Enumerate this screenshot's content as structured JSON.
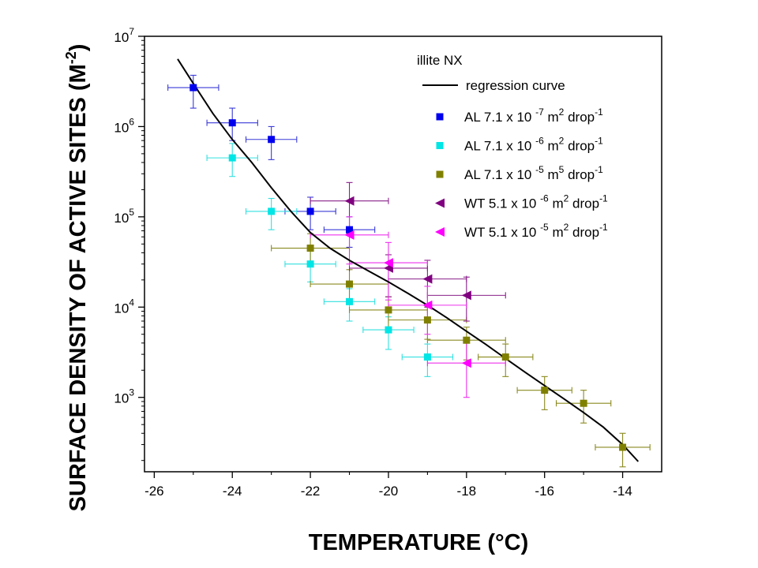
{
  "chart_data": {
    "type": "scatter",
    "xlabel": "TEMPERATURE (°C)",
    "ylabel_main": "SURFACE DENSITY OF ACTIVE SITES (M",
    "ylabel_sup": "-2",
    "ylabel_end": ")",
    "x_range": [
      -26.25,
      -13.0
    ],
    "y_range": [
      150,
      10000000
    ],
    "y_scale": "log",
    "x_ticks": [
      -26,
      -24,
      -22,
      -20,
      -18,
      -16,
      -14
    ],
    "x_tick_labels": [
      "-26",
      "-24",
      "-22",
      "-20",
      "-18",
      "-16",
      "-14"
    ],
    "y_ticks": [
      {
        "value": 1000,
        "mant": "10",
        "exp": "3"
      },
      {
        "value": 10000,
        "mant": "10",
        "exp": "4"
      },
      {
        "value": 100000,
        "mant": "10",
        "exp": "5"
      },
      {
        "value": 1000000,
        "mant": "10",
        "exp": "6"
      },
      {
        "value": 10000000,
        "mant": "10",
        "exp": "7"
      }
    ],
    "legend_title": "illite NX",
    "regression": {
      "label": "regression curve",
      "color": "#000000",
      "points": [
        [
          -25.4,
          5600000
        ],
        [
          -25.0,
          3000000
        ],
        [
          -24.5,
          1400000
        ],
        [
          -24.0,
          720000
        ],
        [
          -23.5,
          400000
        ],
        [
          -23.0,
          210000
        ],
        [
          -22.5,
          115000
        ],
        [
          -22.0,
          67000
        ],
        [
          -21.5,
          45000
        ],
        [
          -21.0,
          33000
        ],
        [
          -20.5,
          25000
        ],
        [
          -20.0,
          19000
        ],
        [
          -19.5,
          14200
        ],
        [
          -19.0,
          10500
        ],
        [
          -18.5,
          7600
        ],
        [
          -18.0,
          5400
        ],
        [
          -17.5,
          3850
        ],
        [
          -17.0,
          2700
        ],
        [
          -16.5,
          1900
        ],
        [
          -16.0,
          1350
        ],
        [
          -15.5,
          960
        ],
        [
          -15.0,
          680
        ],
        [
          -14.5,
          470
        ],
        [
          -14.0,
          300
        ],
        [
          -13.6,
          195
        ]
      ]
    },
    "series": [
      {
        "name": "AL 7.1 x 10",
        "exp": "-7",
        "unit": "m",
        "unit_exp": "2",
        "tail": "drop",
        "tail_exp": "-1",
        "marker": "square",
        "color": "#0000ee",
        "err_color": "#3a3ad8",
        "points": [
          {
            "x": -25.0,
            "y": 2700000,
            "xerr": 0.65,
            "ylo": 1600000,
            "yhi": 3700000
          },
          {
            "x": -24.0,
            "y": 1100000,
            "xerr": 0.65,
            "ylo": 700000,
            "yhi": 1600000
          },
          {
            "x": -23.0,
            "y": 720000,
            "xerr": 0.65,
            "ylo": 430000,
            "yhi": 1000000
          },
          {
            "x": -22.0,
            "y": 115000,
            "xerr": 0.65,
            "ylo": 72000,
            "yhi": 165000
          },
          {
            "x": -21.0,
            "y": 72000,
            "xerr": 0.65,
            "ylo": 46000,
            "yhi": 100000
          }
        ]
      },
      {
        "name": "AL 7.1 x 10",
        "exp": "-6",
        "unit": "m",
        "unit_exp": "2",
        "tail": "drop",
        "tail_exp": "-1",
        "marker": "square",
        "color": "#00e5e5",
        "err_color": "#33e0e0",
        "points": [
          {
            "x": -24.0,
            "y": 450000,
            "xerr": 0.65,
            "ylo": 280000,
            "yhi": 650000
          },
          {
            "x": -23.0,
            "y": 115000,
            "xerr": 0.65,
            "ylo": 72000,
            "yhi": 160000
          },
          {
            "x": -22.0,
            "y": 30000,
            "xerr": 0.65,
            "ylo": 19000,
            "yhi": 43000
          },
          {
            "x": -21.0,
            "y": 11500,
            "xerr": 0.65,
            "ylo": 7000,
            "yhi": 16000
          },
          {
            "x": -20.0,
            "y": 5600,
            "xerr": 0.65,
            "ylo": 3400,
            "yhi": 7800
          },
          {
            "x": -19.0,
            "y": 2800,
            "xerr": 0.65,
            "ylo": 1700,
            "yhi": 3900
          }
        ]
      },
      {
        "name": "AL 7.1 x 10",
        "exp": "-5",
        "unit": "m",
        "unit_exp": "5",
        "tail": "drop",
        "tail_exp": "-1",
        "marker": "square",
        "color": "#808000",
        "err_color": "#8a8a20",
        "points": [
          {
            "x": -22.0,
            "y": 45000,
            "xerr": 1.0,
            "ylo": 28000,
            "yhi": 65000
          },
          {
            "x": -21.0,
            "y": 18000,
            "xerr": 1.0,
            "ylo": 11000,
            "yhi": 26000
          },
          {
            "x": -20.0,
            "y": 9300,
            "xerr": 1.0,
            "ylo": 5700,
            "yhi": 13000
          },
          {
            "x": -19.0,
            "y": 7200,
            "xerr": 1.0,
            "ylo": 4400,
            "yhi": 10000
          },
          {
            "x": -18.0,
            "y": 4300,
            "xerr": 1.0,
            "ylo": 2600,
            "yhi": 6000
          },
          {
            "x": -17.0,
            "y": 2800,
            "xerr": 0.7,
            "ylo": 1700,
            "yhi": 3900
          },
          {
            "x": -16.0,
            "y": 1200,
            "xerr": 0.7,
            "ylo": 730,
            "yhi": 1700
          },
          {
            "x": -15.0,
            "y": 860,
            "xerr": 0.7,
            "ylo": 520,
            "yhi": 1200
          },
          {
            "x": -14.0,
            "y": 280,
            "xerr": 0.7,
            "ylo": 170,
            "yhi": 400
          }
        ]
      },
      {
        "name": "WT 5.1 x 10",
        "exp": "-6",
        "unit": "m",
        "unit_exp": "2",
        "tail": "drop",
        "tail_exp": "-1",
        "marker": "triangle-left",
        "color": "#800080",
        "err_color": "#8a208a",
        "points": [
          {
            "x": -21.0,
            "y": 150000,
            "xerr": 1.0,
            "ylo": 65000,
            "yhi": 240000
          },
          {
            "x": -20.0,
            "y": 27000,
            "xerr": 1.0,
            "ylo": 13000,
            "yhi": 38000
          },
          {
            "x": -19.0,
            "y": 20500,
            "xerr": 1.0,
            "ylo": 10000,
            "yhi": 33000
          },
          {
            "x": -18.0,
            "y": 13500,
            "xerr": 1.0,
            "ylo": 7000,
            "yhi": 21500
          }
        ]
      },
      {
        "name": "WT 5.1 x 10",
        "exp": "-5",
        "unit": "m",
        "unit_exp": "2",
        "tail": "drop",
        "tail_exp": "-1",
        "marker": "triangle-left",
        "color": "#ff00ff",
        "err_color": "#ee30ee",
        "points": [
          {
            "x": -21.0,
            "y": 63000,
            "xerr": 1.0,
            "ylo": 30000,
            "yhi": 100000
          },
          {
            "x": -20.0,
            "y": 31000,
            "xerr": 1.0,
            "ylo": 12000,
            "yhi": 52000
          },
          {
            "x": -19.0,
            "y": 10500,
            "xerr": 1.0,
            "ylo": 5000,
            "yhi": 17000
          },
          {
            "x": -18.0,
            "y": 2400,
            "xerr": 1.0,
            "ylo": 1000,
            "yhi": 4200
          }
        ]
      }
    ]
  }
}
